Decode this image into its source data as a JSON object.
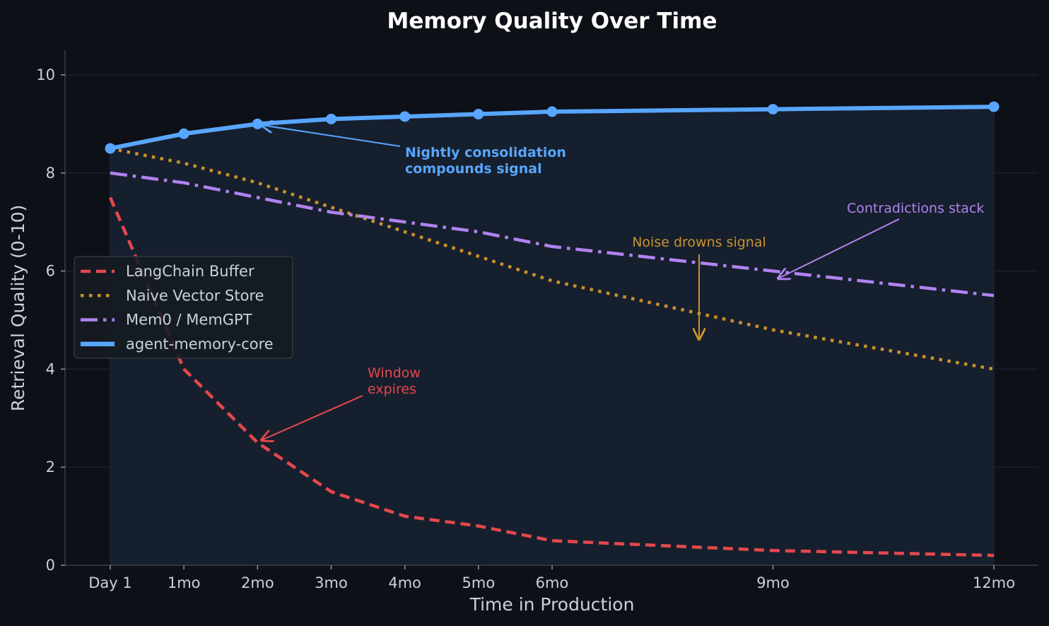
{
  "chart_data": {
    "type": "line",
    "title": "Memory Quality Over Time",
    "xlabel": "Time in Production",
    "ylabel": "Retrieval Quality (0-10)",
    "ylim": [
      0,
      10.5
    ],
    "yticks": [
      0,
      2,
      4,
      6,
      8,
      10
    ],
    "x_months": [
      0,
      1,
      2,
      3,
      4,
      5,
      6,
      9,
      12
    ],
    "categories": [
      "Day 1",
      "1mo",
      "2mo",
      "3mo",
      "4mo",
      "5mo",
      "6mo",
      "9mo",
      "12mo"
    ],
    "grid": true,
    "legend_position": "center left",
    "series": [
      {
        "name": "LangChain Buffer",
        "color": "#e5484d",
        "style": "dashed",
        "values": [
          7.5,
          4.0,
          2.5,
          1.5,
          1.0,
          0.8,
          0.5,
          0.3,
          0.2
        ]
      },
      {
        "name": "Naive Vector Store",
        "color": "#c9922a",
        "style": "dotted",
        "values": [
          8.5,
          8.2,
          7.8,
          7.3,
          6.8,
          6.3,
          5.8,
          4.8,
          4.0
        ]
      },
      {
        "name": "Mem0 / MemGPT",
        "color": "#b083f0",
        "style": "dashdot",
        "values": [
          8.0,
          7.8,
          7.5,
          7.2,
          7.0,
          6.8,
          6.5,
          6.0,
          5.5
        ]
      },
      {
        "name": "agent-memory-core",
        "color": "#58a6ff",
        "style": "solid-markers",
        "values": [
          8.5,
          8.8,
          9.0,
          9.1,
          9.15,
          9.2,
          9.25,
          9.3,
          9.35
        ]
      }
    ],
    "annotations": [
      {
        "text": "Nightly consolidation\ncompounds signal",
        "color": "#58a6ff",
        "bold": true,
        "points_to": {
          "x": 2,
          "y": 9.0
        }
      },
      {
        "text": "Noise drowns signal",
        "color": "#c9922a",
        "points_to": {
          "x": 8,
          "y": 4.5
        }
      },
      {
        "text": "Contradictions stack",
        "color": "#b083f0",
        "points_to": {
          "x": 9,
          "y": 5.85
        }
      },
      {
        "text": "Window\nexpires",
        "color": "#e5484d",
        "points_to": {
          "x": 2,
          "y": 2.5
        }
      }
    ]
  },
  "colors": {
    "background": "#0d1017",
    "plot_fill": "#161f2d",
    "grid": "#232830",
    "axis": "#3a4048",
    "text": "#c9d1d9"
  },
  "labels": {
    "title": "Memory Quality Over Time",
    "xlabel": "Time in Production",
    "ylabel": "Retrieval Quality (0-10)",
    "ann_blue_1": "Nightly consolidation",
    "ann_blue_2": "compounds signal",
    "ann_orange": "Noise drowns signal",
    "ann_purple": "Contradictions stack",
    "ann_red_1": "Window",
    "ann_red_2": "expires"
  }
}
